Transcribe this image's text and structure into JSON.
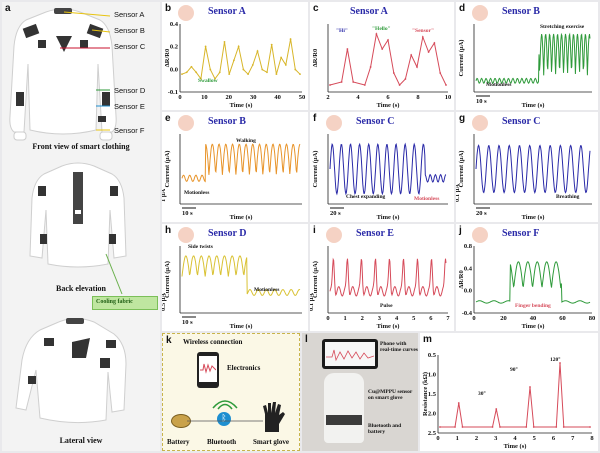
{
  "panel_labels": {
    "a": "a",
    "b": "b",
    "c": "c",
    "d": "d",
    "e": "e",
    "f": "f",
    "g": "g",
    "h": "h",
    "i": "i",
    "j": "j",
    "k": "k",
    "l": "l",
    "m": "m"
  },
  "panel_a": {
    "sensors": [
      "Sensor A",
      "Sensor B",
      "Sensor C",
      "Sensor D",
      "Sensor E",
      "Sensor F"
    ],
    "front_caption": "Front view of smart clothing",
    "back_caption": "Back elevation",
    "cooling_label": "Cooling fabric",
    "lateral_caption": "Lateral view"
  },
  "colors": {
    "yellow": "#d8b62a",
    "red": "#d64b5a",
    "green": "#2e9a3a",
    "blue": "#2a2aa8",
    "orange": "#e8942a",
    "gold": "#d9c234",
    "cyan": "#1e8fd0",
    "sensor_pad": "#333333"
  },
  "chart_data": [
    {
      "id": "b",
      "type": "line",
      "title": "Sensor A",
      "title_color": "#2a2aa8",
      "ylabel": "ΔR/R0",
      "xlabel": "Time (s)",
      "xticks": [
        "0",
        "10",
        "20",
        "30",
        "40",
        "50"
      ],
      "yticks": [
        "0.4",
        "0.2",
        "0.0",
        "-0.1"
      ],
      "ylim": [
        -0.15,
        0.5
      ],
      "annotation": "Swallow",
      "series": [
        {
          "name": "",
          "color": "#d8b62a",
          "x": [
            0,
            2,
            4,
            6,
            8,
            10,
            12,
            14,
            16,
            18,
            20,
            22,
            24,
            26,
            28,
            30,
            32,
            34,
            36,
            38,
            40,
            42,
            44,
            46,
            48,
            50
          ],
          "y": [
            0.0,
            0.02,
            0.08,
            0.02,
            -0.05,
            0.3,
            0.05,
            -0.05,
            0.02,
            0.35,
            0.0,
            0.15,
            0.3,
            0.05,
            0.0,
            0.1,
            0.25,
            0.05,
            0.02,
            0.32,
            0.0,
            0.18,
            0.1,
            0.38,
            0.05,
            0.0
          ]
        }
      ]
    },
    {
      "id": "c",
      "type": "line",
      "title": "Sensor A",
      "title_color": "#2a2aa8",
      "ylabel": "ΔR/R0",
      "xlabel": "Time (s)",
      "xticks": [
        "2",
        "4",
        "6",
        "8",
        "10"
      ],
      "yticks": [],
      "annotations": [
        {
          "text": "\"Hi\"",
          "color": "#2a2aa8"
        },
        {
          "text": "\"Hello\"",
          "color": "#2e9a3a"
        },
        {
          "text": "\"Sensor\"",
          "color": "#d64b5a"
        }
      ],
      "series": [
        {
          "name": "",
          "color": "#d64b5a",
          "x": [
            0.5,
            1.5,
            2,
            2.5,
            3.5,
            4,
            4.5,
            5,
            5.5,
            6,
            6.5,
            7,
            7.5,
            8,
            8.5,
            9,
            9.5,
            10,
            10.5
          ],
          "y": [
            0.0,
            0.05,
            0.6,
            0.05,
            0.0,
            0.3,
            0.85,
            0.6,
            0.75,
            0.2,
            0.0,
            0.1,
            0.5,
            0.3,
            0.8,
            0.55,
            0.7,
            0.2,
            0.0
          ]
        }
      ]
    },
    {
      "id": "d",
      "type": "line",
      "title": "Sensor B",
      "title_color": "#2a2aa8",
      "ylabel": "Current (μA)",
      "xlabel": "Time (s)",
      "scale_bar": "10 s",
      "annotations": [
        {
          "text": "Motionless",
          "color": "#111"
        },
        {
          "text": "Stretching exercise",
          "color": "#111"
        }
      ],
      "series": [
        {
          "name": "",
          "color": "#2e9a3a",
          "x": [],
          "y": []
        }
      ]
    },
    {
      "id": "e",
      "type": "line",
      "title": "Sensor B",
      "title_color": "#2a2aa8",
      "ylabel": "Current (μA)",
      "xlabel": "Time (s)",
      "scale_bar": "10 s",
      "scale_y": "1 μA",
      "annotations": [
        {
          "text": "Motionless",
          "color": "#111"
        },
        {
          "text": "Walking",
          "color": "#111"
        }
      ],
      "series": [
        {
          "name": "",
          "color": "#e8942a",
          "x": [],
          "y": []
        }
      ]
    },
    {
      "id": "f",
      "type": "line",
      "title": "Sensor C",
      "title_color": "#2a2aa8",
      "ylabel": "Current (μA)",
      "xlabel": "Time (s)",
      "scale_bar": "20 s",
      "annotations": [
        {
          "text": "Chest expanding",
          "color": "#111"
        },
        {
          "text": "Motionless",
          "color": "#d64b5a"
        }
      ],
      "series": [
        {
          "name": "",
          "color": "#2a2aa8",
          "x": [],
          "y": []
        }
      ]
    },
    {
      "id": "g",
      "type": "line",
      "title": "Sensor C",
      "title_color": "#2a2aa8",
      "ylabel": "Current (μA)",
      "xlabel": "Time (s)",
      "scale_bar": "20 s",
      "scale_y": "0.1 μA",
      "annotations": [
        {
          "text": "Breathing",
          "color": "#111"
        }
      ],
      "series": [
        {
          "name": "",
          "color": "#2a2aa8",
          "x": [],
          "y": []
        }
      ]
    },
    {
      "id": "h",
      "type": "line",
      "title": "Sensor D",
      "title_color": "#2a2aa8",
      "ylabel": "Current (μA)",
      "xlabel": "Time (s)",
      "scale_bar": "10 s",
      "scale_y": "0.5 μA",
      "annotations": [
        {
          "text": "Side twists",
          "color": "#111"
        },
        {
          "text": "Motionless",
          "color": "#111"
        }
      ],
      "series": [
        {
          "name": "",
          "color": "#d9c234",
          "x": [],
          "y": []
        }
      ]
    },
    {
      "id": "i",
      "type": "line",
      "title": "Sensor E",
      "title_color": "#2a2aa8",
      "ylabel": "Current (μA)",
      "xlabel": "Time (s)",
      "xticks": [
        "0",
        "1",
        "2",
        "3",
        "4",
        "5",
        "6",
        "7"
      ],
      "scale_y": "0.1 μA",
      "annotations": [
        {
          "text": "Pulse",
          "color": "#111"
        }
      ],
      "series": [
        {
          "name": "",
          "color": "#d64b5a",
          "x": [],
          "y": []
        }
      ]
    },
    {
      "id": "j",
      "type": "line",
      "title": "Sensor F",
      "title_color": "#2a2aa8",
      "ylabel": "ΔR/R0",
      "xlabel": "Time (s)",
      "xticks": [
        "0",
        "20",
        "40",
        "60",
        "80"
      ],
      "yticks": [
        "0.8",
        "0.4",
        "0.0",
        "-0.4"
      ],
      "annotations": [
        {
          "text": "Finger bending",
          "color": "#d64b5a"
        }
      ],
      "series": [
        {
          "name": "",
          "color": "#2e9a3a",
          "x": [],
          "y": []
        }
      ]
    },
    {
      "id": "m",
      "type": "line",
      "title": "",
      "ylabel": "Resistance (kΩ)",
      "xlabel": "Time (s)",
      "xticks": [
        "0",
        "1",
        "2",
        "3",
        "4",
        "5",
        "6",
        "7",
        "8"
      ],
      "yticks": [
        "0.5",
        "1.0",
        "1.5",
        "2.0",
        "2.5"
      ],
      "annotations": [
        {
          "text": "30°",
          "color": "#111"
        },
        {
          "text": "90°",
          "color": "#111"
        },
        {
          "text": "120°",
          "color": "#111"
        }
      ],
      "series": [
        {
          "name": "",
          "color": "#d64b5a",
          "x": [
            0,
            0.8,
            1.0,
            1.2,
            2.8,
            3.0,
            3.2,
            4.6,
            4.8,
            5.0,
            6.2,
            6.4,
            6.6,
            8
          ],
          "y": [
            0.45,
            0.45,
            1.05,
            0.45,
            0.45,
            0.9,
            0.45,
            0.45,
            1.45,
            0.45,
            0.45,
            2.05,
            0.45,
            0.45
          ]
        }
      ]
    }
  ],
  "panel_k": {
    "title": "Wireless connection",
    "electronics": "Electronics",
    "battery": "Battery",
    "bluetooth": "Bluetooth",
    "glove": "Smart glove"
  },
  "panel_l": {
    "phone": "Phone with real-time curves",
    "sensor": "Cu@MPPU sensor on smart glove",
    "battery": "Bluetooth and battery"
  }
}
